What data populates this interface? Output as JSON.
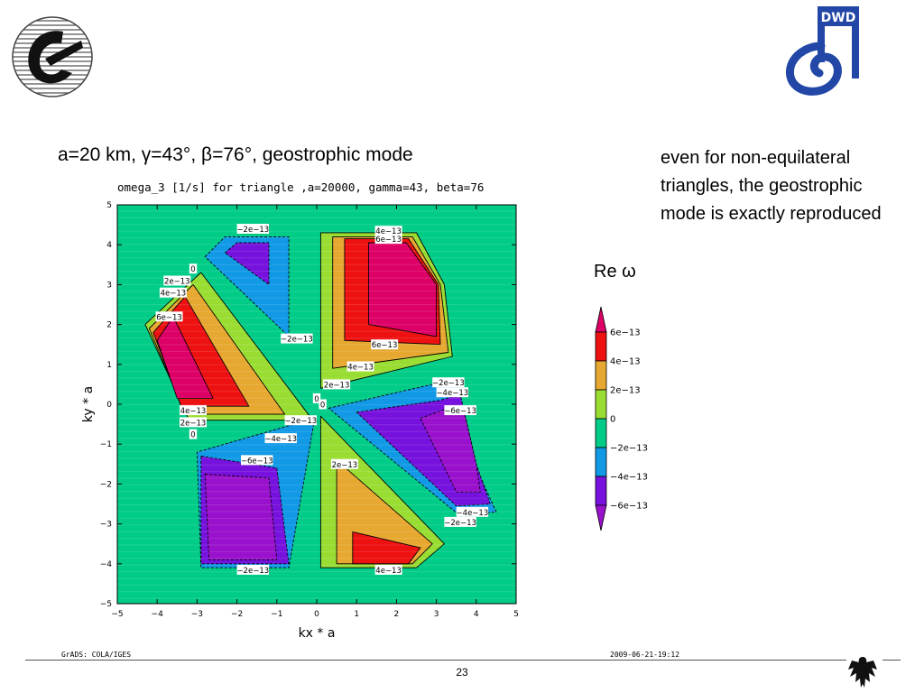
{
  "slide": {
    "heading": "a=20 km, γ=43°, β=76°, geostrophic mode",
    "note": "even for non-equilateral triangles, the geostrophic mode is exactly reproduced",
    "legend_label": "Re ω",
    "slide_number": "23",
    "footer_left": "GrADS: COLA/IGES",
    "footer_right": "2009-06-21-19:12",
    "logo_left_icon": "institute-logo-icon",
    "logo_right_icon": "dwd-logo-icon",
    "logo_right_text": "DWD",
    "eagle_icon": "federal-eagle-icon"
  },
  "chart_data": {
    "type": "heatmap",
    "title": "omega_3 [1/s] for triangle ,a=20000, gamma=43, beta=76",
    "xlabel": "kx * a",
    "ylabel": "ky * a",
    "xlim": [
      -5,
      5
    ],
    "ylim": [
      -5,
      5
    ],
    "xticks": [
      -5,
      -4,
      -3,
      -2,
      -1,
      0,
      1,
      2,
      3,
      4,
      5
    ],
    "yticks": [
      -5,
      -4,
      -3,
      -2,
      -1,
      0,
      1,
      2,
      3,
      4,
      5
    ],
    "xtick_labels": [
      "−5",
      "−4",
      "−3",
      "−2",
      "−1",
      "0",
      "1",
      "2",
      "3",
      "4",
      "5"
    ],
    "ytick_labels": [
      "−5",
      "−4",
      "−3",
      "−2",
      "−1",
      "0",
      "1",
      "2",
      "3",
      "4",
      "5"
    ],
    "colorbar": {
      "labels": [
        "6e−13",
        "4e−13",
        "2e−13",
        "0",
        "−2e−13",
        "−4e−13",
        "−6e−13"
      ],
      "colors": [
        "#dd0066",
        "#ee1111",
        "#e6a830",
        "#99dd33",
        "#00cc88",
        "#1199e6",
        "#7711dd",
        "#9911cc"
      ]
    },
    "background_color": "#00cc88",
    "regions": [
      {
        "name": "upper-left-positive",
        "layers": [
          {
            "level": "0",
            "color": "#99dd33",
            "pts": [
              [
                -2.9,
                3.3
              ],
              [
                -4.3,
                2.0
              ],
              [
                -3.2,
                -0.4
              ],
              [
                -0.1,
                -0.4
              ]
            ]
          },
          {
            "level": "2e-13",
            "color": "#e6a830",
            "pts": [
              [
                -3.1,
                3.0
              ],
              [
                -4.2,
                1.9
              ],
              [
                -3.3,
                -0.25
              ],
              [
                -0.8,
                -0.25
              ]
            ]
          },
          {
            "level": "4e-13",
            "color": "#ee1111",
            "pts": [
              [
                -3.3,
                2.7
              ],
              [
                -4.1,
                1.8
              ],
              [
                -3.4,
                -0.05
              ],
              [
                -1.7,
                -0.05
              ]
            ]
          },
          {
            "level": "6e-13",
            "color": "#dd0066",
            "pts": [
              [
                -3.6,
                2.2
              ],
              [
                -4.0,
                1.6
              ],
              [
                -3.5,
                0.15
              ],
              [
                -2.6,
                0.15
              ]
            ]
          }
        ]
      },
      {
        "name": "upper-right-positive",
        "layers": [
          {
            "level": "0",
            "color": "#99dd33",
            "pts": [
              [
                0.1,
                4.3
              ],
              [
                2.5,
                4.3
              ],
              [
                3.2,
                3.0
              ],
              [
                3.4,
                1.2
              ],
              [
                0.1,
                0.4
              ]
            ]
          },
          {
            "level": "2e-13",
            "color": "#e6a830",
            "pts": [
              [
                0.4,
                4.2
              ],
              [
                2.4,
                4.2
              ],
              [
                3.1,
                3.0
              ],
              [
                3.3,
                1.3
              ],
              [
                0.4,
                0.9
              ]
            ]
          },
          {
            "level": "4e-13",
            "color": "#ee1111",
            "pts": [
              [
                0.7,
                4.15
              ],
              [
                2.3,
                4.15
              ],
              [
                3.05,
                3.0
              ],
              [
                3.1,
                1.5
              ],
              [
                0.7,
                1.6
              ]
            ]
          },
          {
            "level": "6e-13",
            "color": "#dd0066",
            "pts": [
              [
                1.3,
                4.05
              ],
              [
                2.25,
                4.05
              ],
              [
                3.0,
                3.0
              ],
              [
                3.0,
                1.7
              ],
              [
                1.3,
                2.0
              ]
            ]
          }
        ]
      },
      {
        "name": "lower-right-positive",
        "layers": [
          {
            "level": "0",
            "color": "#99dd33",
            "pts": [
              [
                0.1,
                -0.3
              ],
              [
                3.2,
                -3.5
              ],
              [
                2.5,
                -4.1
              ],
              [
                0.1,
                -4.1
              ]
            ]
          },
          {
            "level": "2e-13",
            "color": "#e6a830",
            "pts": [
              [
                0.5,
                -1.4
              ],
              [
                2.9,
                -3.5
              ],
              [
                2.4,
                -4.0
              ],
              [
                0.5,
                -4.0
              ]
            ]
          },
          {
            "level": "4e-13",
            "color": "#ee1111",
            "pts": [
              [
                0.9,
                -3.2
              ],
              [
                2.6,
                -3.6
              ],
              [
                2.3,
                -4.0
              ],
              [
                0.9,
                -4.0
              ]
            ]
          }
        ]
      },
      {
        "name": "upper-center-negative",
        "layers": [
          {
            "level": "-2e-13",
            "color": "#1199e6",
            "pts": [
              [
                -2.8,
                3.7
              ],
              [
                -2.3,
                4.2
              ],
              [
                -0.7,
                4.2
              ],
              [
                -0.7,
                1.7
              ]
            ]
          },
          {
            "level": "-4e-13",
            "color": "#7711dd",
            "pts": [
              [
                -2.3,
                3.8
              ],
              [
                -2.0,
                4.05
              ],
              [
                -1.2,
                4.05
              ],
              [
                -1.2,
                3.0
              ]
            ]
          }
        ]
      },
      {
        "name": "lower-left-negative",
        "layers": [
          {
            "level": "-2e-13",
            "color": "#1199e6",
            "pts": [
              [
                -0.05,
                -0.35
              ],
              [
                -3.0,
                -1.2
              ],
              [
                -2.9,
                -4.1
              ],
              [
                -0.7,
                -4.1
              ]
            ]
          },
          {
            "level": "-4e-13",
            "color": "#7711dd",
            "pts": [
              [
                -2.9,
                -1.3
              ],
              [
                -1.0,
                -1.6
              ],
              [
                -0.7,
                -4.0
              ],
              [
                -2.9,
                -4.0
              ]
            ]
          },
          {
            "level": "-6e-13",
            "color": "#9911cc",
            "pts": [
              [
                -2.8,
                -1.75
              ],
              [
                -1.2,
                -1.85
              ],
              [
                -1.0,
                -3.9
              ],
              [
                -2.7,
                -3.9
              ]
            ]
          }
        ]
      },
      {
        "name": "lower-right-negative",
        "layers": [
          {
            "level": "-2e-13",
            "color": "#1199e6",
            "pts": [
              [
                0.3,
                -0.1
              ],
              [
                2.9,
                0.5
              ],
              [
                3.5,
                0.6
              ],
              [
                4.0,
                -1.6
              ],
              [
                4.5,
                -2.7
              ],
              [
                3.6,
                -2.8
              ]
            ]
          },
          {
            "level": "-4e-13",
            "color": "#7711dd",
            "pts": [
              [
                1.0,
                -0.2
              ],
              [
                3.1,
                0.1
              ],
              [
                3.6,
                0.25
              ],
              [
                4.0,
                -1.5
              ],
              [
                4.35,
                -2.5
              ],
              [
                3.5,
                -2.55
              ]
            ]
          },
          {
            "level": "-6e-13",
            "color": "#9911cc",
            "pts": [
              [
                2.6,
                -0.35
              ],
              [
                3.3,
                -0.1
              ],
              [
                3.7,
                -0.2
              ],
              [
                4.0,
                -1.5
              ],
              [
                4.1,
                -2.2
              ],
              [
                3.5,
                -2.2
              ]
            ]
          }
        ]
      }
    ],
    "contour_labels": [
      {
        "text": "−2e−13",
        "x": -1.6,
        "y": 4.4
      },
      {
        "text": "0",
        "x": -3.1,
        "y": 3.4
      },
      {
        "text": "2e−13",
        "x": -3.5,
        "y": 3.1
      },
      {
        "text": "4e−13",
        "x": -3.6,
        "y": 2.8
      },
      {
        "text": "6e−13",
        "x": -3.7,
        "y": 2.2
      },
      {
        "text": "−2e−13",
        "x": -0.5,
        "y": 1.65
      },
      {
        "text": "4e−13",
        "x": -3.1,
        "y": -0.15
      },
      {
        "text": "2e−13",
        "x": -3.1,
        "y": -0.45
      },
      {
        "text": "0",
        "x": -3.1,
        "y": -0.75
      },
      {
        "text": "0",
        "x": 0.0,
        "y": 0.15
      },
      {
        "text": "0",
        "x": 0.15,
        "y": 0.0
      },
      {
        "text": "2e−13",
        "x": 0.5,
        "y": 0.5
      },
      {
        "text": "4e−13",
        "x": 1.8,
        "y": 4.35
      },
      {
        "text": "6e−13",
        "x": 1.8,
        "y": 4.15
      },
      {
        "text": "6e−13",
        "x": 1.7,
        "y": 1.5
      },
      {
        "text": "4e−13",
        "x": 1.1,
        "y": 0.95
      },
      {
        "text": "−2e−13",
        "x": -0.4,
        "y": -0.4
      },
      {
        "text": "−4e−13",
        "x": -0.9,
        "y": -0.85
      },
      {
        "text": "−6e−13",
        "x": -1.5,
        "y": -1.4
      },
      {
        "text": "2e−13",
        "x": 0.7,
        "y": -1.5
      },
      {
        "text": "−2e−13",
        "x": 3.3,
        "y": 0.55
      },
      {
        "text": "−4e−13",
        "x": 3.4,
        "y": 0.3
      },
      {
        "text": "−6e−13",
        "x": 3.6,
        "y": -0.15
      },
      {
        "text": "−4e−13",
        "x": 3.9,
        "y": -2.7
      },
      {
        "text": "−2e−13",
        "x": 3.6,
        "y": -2.95
      },
      {
        "text": "−2e−13",
        "x": -1.6,
        "y": -4.15
      },
      {
        "text": "4e−13",
        "x": 1.8,
        "y": -4.15
      }
    ]
  }
}
